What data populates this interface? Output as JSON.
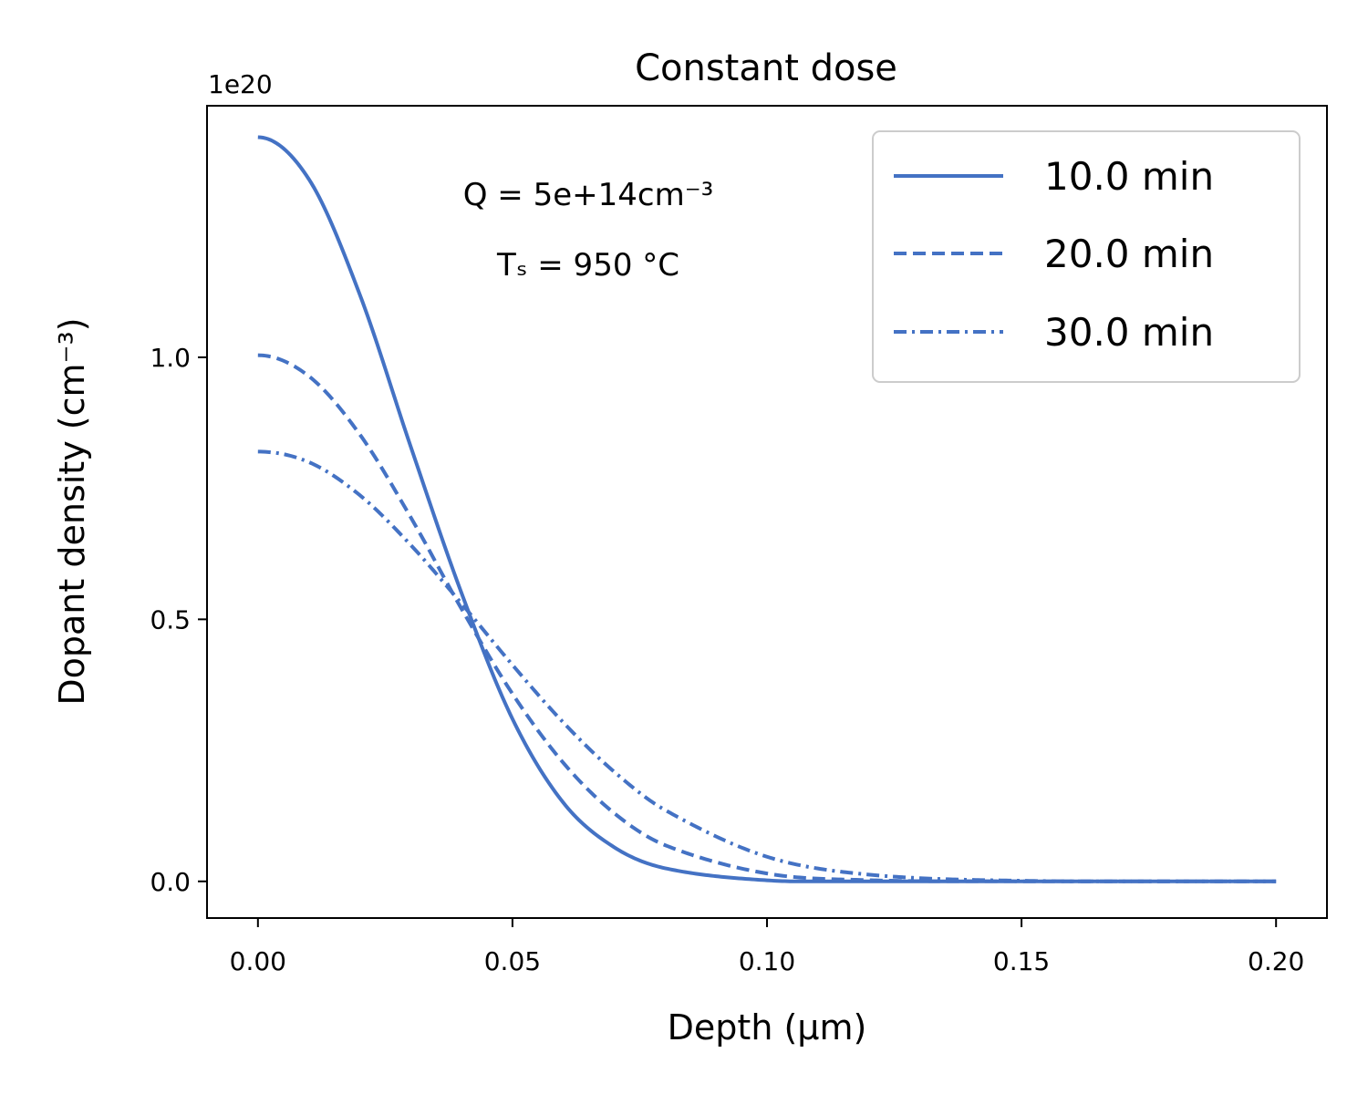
{
  "chart_data": {
    "type": "line",
    "title": "Constant dose",
    "xlabel": "Depth (μm)",
    "ylabel": "Dopant density (cm⁻³)",
    "y_offset_label": "1e20",
    "y_scale_factor": 1e+20,
    "xlim": [
      -0.01,
      0.21
    ],
    "ylim": [
      -0.07,
      1.48
    ],
    "xticks": [
      0.0,
      0.05,
      0.1,
      0.15,
      0.2
    ],
    "xtick_labels": [
      "0.00",
      "0.05",
      "0.10",
      "0.15",
      "0.20"
    ],
    "yticks": [
      0.0,
      0.5,
      1.0
    ],
    "ytick_labels": [
      "0.0",
      "0.5",
      "1.0"
    ],
    "grid": false,
    "legend_position": "top-right",
    "x_range": [
      0.0,
      0.2
    ],
    "annotations": [
      {
        "text": "Q = 5e+14cm⁻³"
      },
      {
        "text": "Tₛ = 950 °C"
      }
    ],
    "series": [
      {
        "name": "10.0 min",
        "style": "solid",
        "peak": 1.42,
        "x": [
          0.0,
          0.01,
          0.02,
          0.03,
          0.04,
          0.05,
          0.06,
          0.07,
          0.08,
          0.1,
          0.12,
          0.15,
          0.2
        ],
        "y": [
          1.42,
          1.34,
          1.12,
          0.83,
          0.55,
          0.31,
          0.15,
          0.065,
          0.025,
          0.002,
          0.0001,
          0.0,
          0.0
        ]
      },
      {
        "name": "20.0 min",
        "style": "dashed",
        "peak": 1.004,
        "x": [
          0.0,
          0.01,
          0.02,
          0.03,
          0.04,
          0.05,
          0.06,
          0.07,
          0.08,
          0.1,
          0.12,
          0.15,
          0.2
        ],
        "y": [
          1.004,
          0.964,
          0.853,
          0.695,
          0.52,
          0.358,
          0.226,
          0.13,
          0.069,
          0.015,
          0.0023,
          0.0001,
          0.0
        ]
      },
      {
        "name": "30.0 min",
        "style": "dashdot",
        "peak": 0.82,
        "x": [
          0.0,
          0.01,
          0.02,
          0.03,
          0.04,
          0.05,
          0.06,
          0.07,
          0.08,
          0.1,
          0.12,
          0.15,
          0.2
        ],
        "y": [
          0.82,
          0.8,
          0.737,
          0.642,
          0.53,
          0.413,
          0.303,
          0.209,
          0.136,
          0.047,
          0.0129,
          0.0012,
          0.0
        ]
      }
    ],
    "line_color": "#4472c4"
  }
}
